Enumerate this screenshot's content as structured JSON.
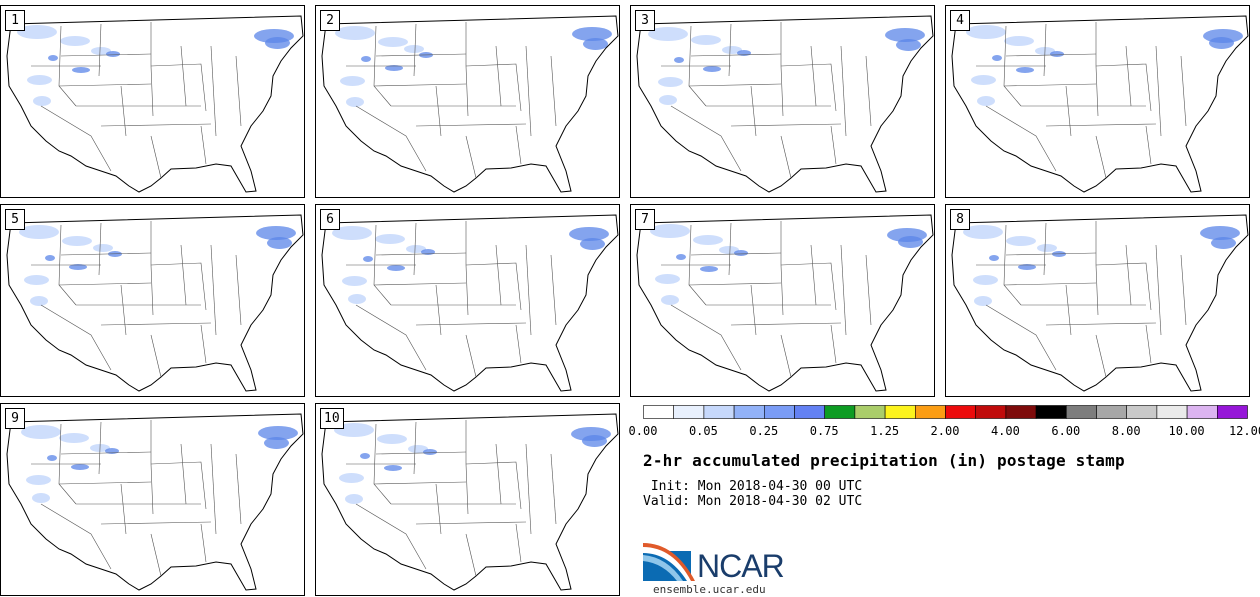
{
  "panels": [
    {
      "label": "1"
    },
    {
      "label": "2"
    },
    {
      "label": "3"
    },
    {
      "label": "4"
    },
    {
      "label": "5"
    },
    {
      "label": "6"
    },
    {
      "label": "7"
    },
    {
      "label": "8"
    },
    {
      "label": "9"
    },
    {
      "label": "10"
    }
  ],
  "colorbar": {
    "colors": [
      "#ffffff",
      "#e8f0fd",
      "#c6d8fb",
      "#92b2f8",
      "#7a9cf6",
      "#6381f3",
      "#0d9c23",
      "#aacd6a",
      "#fcf31d",
      "#fb9d14",
      "#ec0b0c",
      "#c00b0b",
      "#7e0b0b",
      "#000000",
      "#7d7d7d",
      "#a7a7a7",
      "#c9c9c9",
      "#eaeaea",
      "#dcb4f0",
      "#9616d8"
    ],
    "ticks": [
      "0.00",
      "0.05",
      "0.25",
      "0.75",
      "1.25",
      "2.00",
      "4.00",
      "6.00",
      "8.00",
      "10.00",
      "12.00"
    ]
  },
  "title": "2-hr accumulated precipitation (in) postage stamp",
  "init_line": " Init: Mon 2018-04-30 00 UTC",
  "valid_line": "Valid: Mon 2018-04-30 02 UTC",
  "logo": {
    "text": "NCAR",
    "url": "ensemble.ucar.edu"
  },
  "precip_color": "#5b86e8"
}
